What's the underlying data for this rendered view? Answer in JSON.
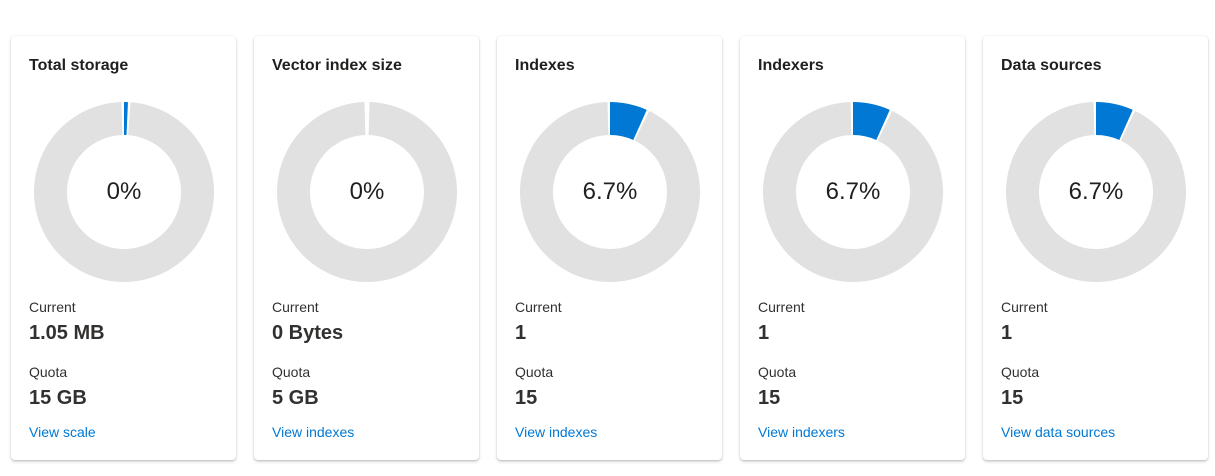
{
  "colors": {
    "accent": "#0078d4",
    "track": "#e1e1e1"
  },
  "cards": [
    {
      "title": "Total storage",
      "percent_label": "0%",
      "fraction": 0.007,
      "current_label": "Current",
      "current_value": "1.05 MB",
      "quota_label": "Quota",
      "quota_value": "15 GB",
      "link_text": "View scale"
    },
    {
      "title": "Vector index size",
      "percent_label": "0%",
      "fraction": 0,
      "current_label": "Current",
      "current_value": "0 Bytes",
      "quota_label": "Quota",
      "quota_value": "5 GB",
      "link_text": "View indexes"
    },
    {
      "title": "Indexes",
      "percent_label": "6.7%",
      "fraction": 0.067,
      "current_label": "Current",
      "current_value": "1",
      "quota_label": "Quota",
      "quota_value": "15",
      "link_text": "View indexes"
    },
    {
      "title": "Indexers",
      "percent_label": "6.7%",
      "fraction": 0.067,
      "current_label": "Current",
      "current_value": "1",
      "quota_label": "Quota",
      "quota_value": "15",
      "link_text": "View indexers"
    },
    {
      "title": "Data sources",
      "percent_label": "6.7%",
      "fraction": 0.067,
      "current_label": "Current",
      "current_value": "1",
      "quota_label": "Quota",
      "quota_value": "15",
      "link_text": "View data sources"
    }
  ]
}
